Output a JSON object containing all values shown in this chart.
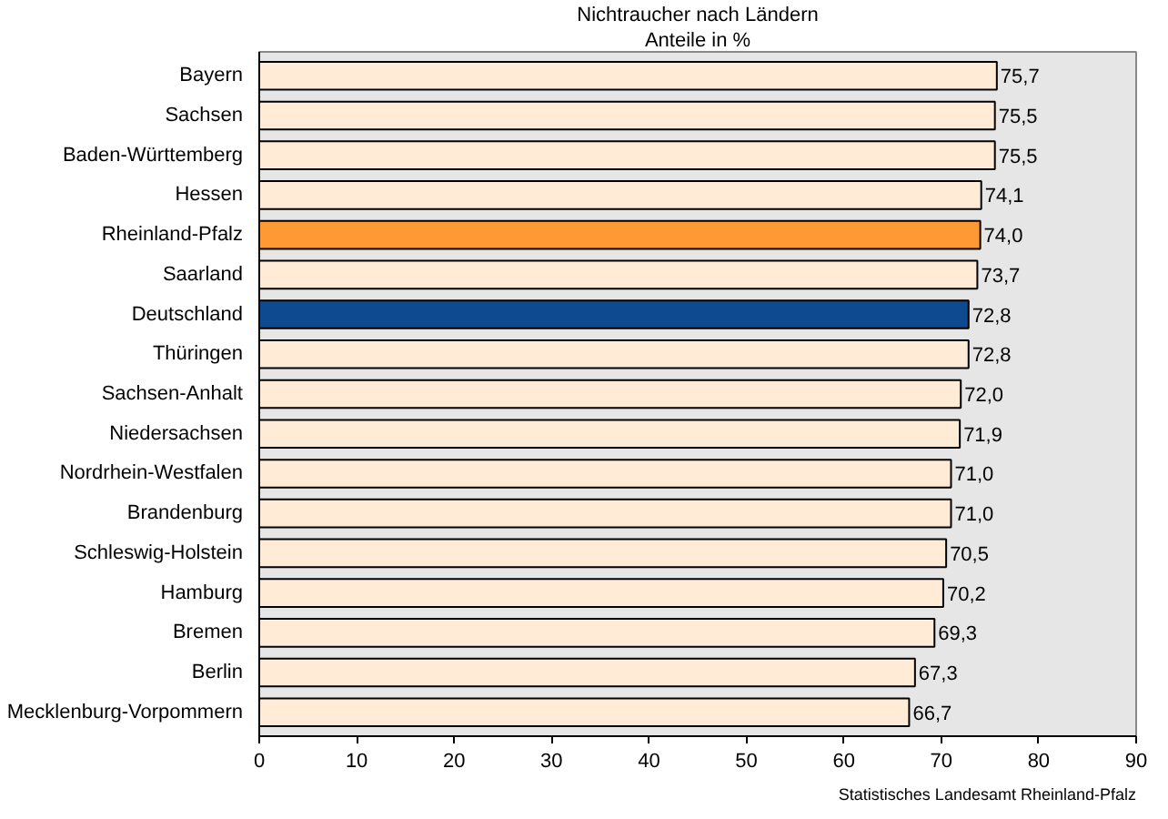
{
  "chart_data": {
    "type": "bar",
    "orientation": "horizontal",
    "title": "Nichtraucher nach Ländern",
    "subtitle": "Anteile in %",
    "categories": [
      "Bayern",
      "Sachsen",
      "Baden-Württemberg",
      "Hessen",
      "Rheinland-Pfalz",
      "Saarland",
      "Deutschland",
      "Thüringen",
      "Sachsen-Anhalt",
      "Niedersachsen",
      "Nordrhein-Westfalen",
      "Brandenburg",
      "Schleswig-Holstein",
      "Hamburg",
      "Bremen",
      "Berlin",
      "Mecklenburg-Vorpommern"
    ],
    "values": [
      75.7,
      75.5,
      75.5,
      74.1,
      74.0,
      73.7,
      72.8,
      72.8,
      72.0,
      71.9,
      71.0,
      71.0,
      70.5,
      70.2,
      69.3,
      67.3,
      66.7
    ],
    "value_labels": [
      "75,7",
      "75,5",
      "75,5",
      "74,1",
      "74,0",
      "73,7",
      "72,8",
      "72,8",
      "72,0",
      "71,9",
      "71,0",
      "71,0",
      "70,5",
      "70,2",
      "69,3",
      "67,3",
      "66,7"
    ],
    "colors": [
      "#ffebd6",
      "#ffebd6",
      "#ffebd6",
      "#ffebd6",
      "#ff9933",
      "#ffebd6",
      "#0d4a8f",
      "#ffebd6",
      "#ffebd6",
      "#ffebd6",
      "#ffebd6",
      "#ffebd6",
      "#ffebd6",
      "#ffebd6",
      "#ffebd6",
      "#ffebd6",
      "#ffebd6"
    ],
    "xlim": [
      0,
      90
    ],
    "xticks": [
      0,
      10,
      20,
      30,
      40,
      50,
      60,
      70,
      80,
      90
    ],
    "annotations": [
      "Statistisches Landesamt Rheinland-Pfalz"
    ]
  }
}
